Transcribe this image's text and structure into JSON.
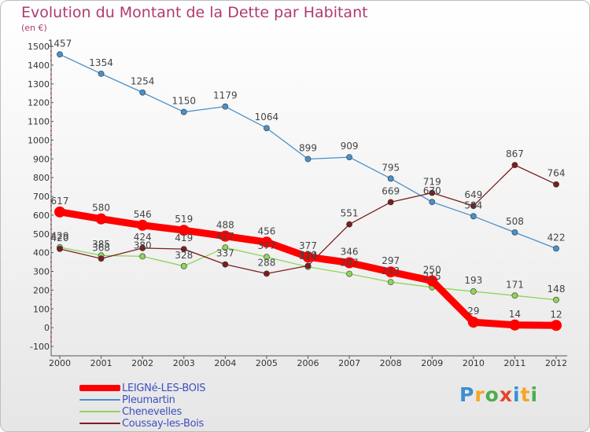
{
  "title": "Evolution du Montant de la Dette par Habitant",
  "subtitle": "(en €)",
  "logo": "Proxiti",
  "chart_data": {
    "type": "line",
    "title": "Evolution du Montant de la Dette par Habitant",
    "ylabel": "(en €)",
    "xlabel": "",
    "x": [
      "2000",
      "2001",
      "2002",
      "2003",
      "2004",
      "2005",
      "2006",
      "2007",
      "2008",
      "2009",
      "2010",
      "2011",
      "2012"
    ],
    "ylim": [
      -100,
      1500
    ],
    "yticks": [
      -100,
      0,
      100,
      200,
      300,
      400,
      500,
      600,
      700,
      800,
      900,
      1000,
      1100,
      1200,
      1300,
      1400,
      1500
    ],
    "grid": false,
    "legend": "bottom-left",
    "series": [
      {
        "name": "LEIGNé-LES-BOIS",
        "color": "#ff0000",
        "values": [
          617,
          580,
          546,
          519,
          488,
          456,
          377,
          346,
          297,
          250,
          29,
          14,
          12
        ]
      },
      {
        "name": "Pleumartin",
        "color": "#4a90c8",
        "values": [
          1457,
          1354,
          1254,
          1150,
          1179,
          1064,
          899,
          909,
          795,
          670,
          594,
          508,
          422
        ]
      },
      {
        "name": "Chenevelles",
        "color": "#8fd45a",
        "values": [
          429,
          385,
          380,
          328,
          427,
          377,
          324,
          287,
          243,
          215,
          193,
          171,
          148
        ]
      },
      {
        "name": "Coussay-les-Bois",
        "color": "#7a1e1e",
        "values": [
          420,
          368,
          424,
          419,
          337,
          288,
          330,
          551,
          669,
          719,
          649,
          867,
          764
        ]
      }
    ]
  }
}
